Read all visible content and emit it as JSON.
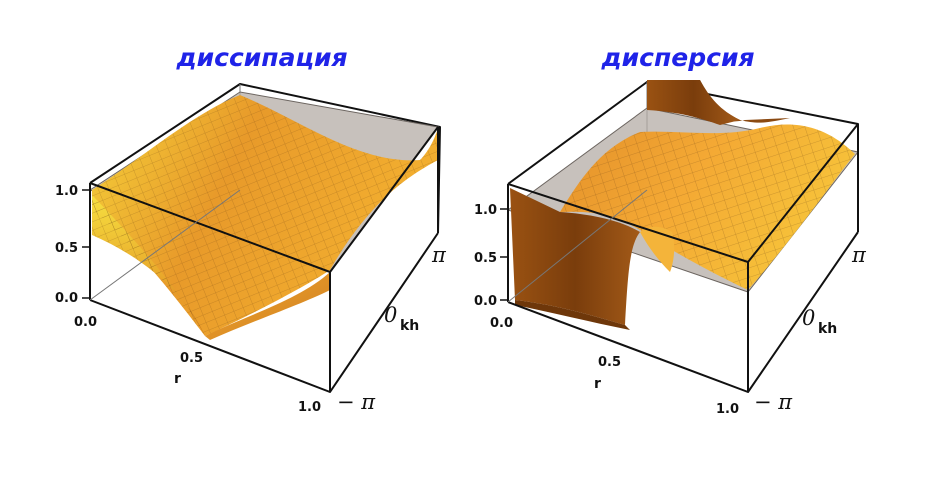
{
  "chart_data": [
    {
      "type": "surface3d",
      "title": "диссипация",
      "x_axis": {
        "label": "r",
        "range": [
          0.0,
          1.0
        ],
        "ticks": [
          "0.0",
          "0.5",
          "1.0"
        ]
      },
      "y_axis": {
        "label": "kh",
        "range": [
          "-π",
          "π"
        ],
        "ticks": [
          "− π",
          "0",
          "π"
        ]
      },
      "z_axis": {
        "label": "",
        "range": [
          0.0,
          1.0
        ],
        "ticks": [
          "0.0",
          "0.5",
          "1.0"
        ]
      },
      "reference_plane_z": 1.0,
      "surface": "|1 - r + r·cos(kh)| , minimum 0 at r = 0.5, kh = ±π",
      "surface_color": "#f1a928"
    },
    {
      "type": "surface3d",
      "title": "дисперсия",
      "x_axis": {
        "label": "r",
        "range": [
          0.0,
          1.0
        ],
        "ticks": [
          "0.0",
          "0.5",
          "1.0"
        ]
      },
      "y_axis": {
        "label": "kh",
        "range": [
          "-π",
          "π"
        ],
        "ticks": [
          "− π",
          "0",
          "π"
        ]
      },
      "z_axis": {
        "label": "",
        "range": [
          0.0,
          1.2
        ],
        "ticks": [
          "0.0",
          "0.5",
          "1.0"
        ]
      },
      "reference_plane_z": 1.0,
      "surface": "relative phase error, drops to 0 for r < 0.5 near kh = ±π, rises above 1 near kh = 0",
      "surface_color": "#f1a928"
    }
  ],
  "colors": {
    "title": "#1f23e8",
    "surface": "#f1a928",
    "plane": "#b4aca6",
    "axes": "#111111"
  }
}
